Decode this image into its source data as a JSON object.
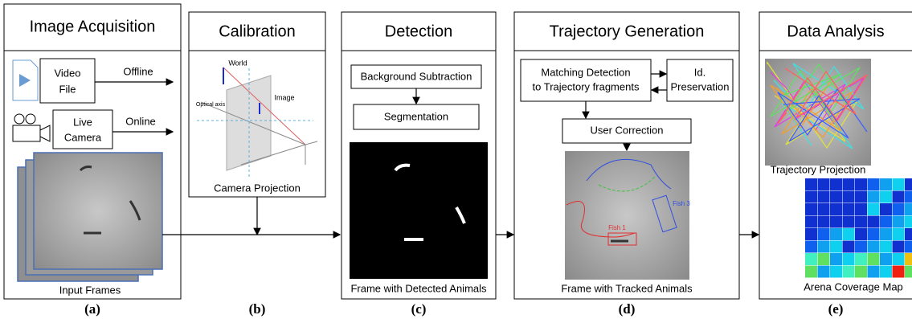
{
  "panels": [
    {
      "title": "Image Acquisition",
      "label": "(a)",
      "video_file": [
        "Video",
        "File"
      ],
      "offline": "Offline",
      "live_camera": [
        "Live",
        "Camera"
      ],
      "online": "Online",
      "caption": "Input Frames"
    },
    {
      "title": "Calibration",
      "label": "(b)",
      "world": "World",
      "image": "Image",
      "optical_axis": "Optical axis",
      "caption": "Camera Projection"
    },
    {
      "title": "Detection",
      "label": "(c)",
      "steps": [
        "Background Subtraction",
        "Segmentation"
      ],
      "caption": "Frame with Detected Animals"
    },
    {
      "title": "Trajectory Generation",
      "label": "(d)",
      "matching": [
        "Matching Detection",
        "to Trajectory fragments"
      ],
      "id_preservation": [
        "Id.",
        "Preservation"
      ],
      "user_correction": "User Correction",
      "fish": [
        "Fish 1",
        "Fish 3"
      ],
      "caption": "Frame with Tracked Animals"
    },
    {
      "title": "Data Analysis",
      "label": "(e)",
      "captions": [
        "Trajectory Projection",
        "Arena Coverage Map"
      ]
    }
  ]
}
